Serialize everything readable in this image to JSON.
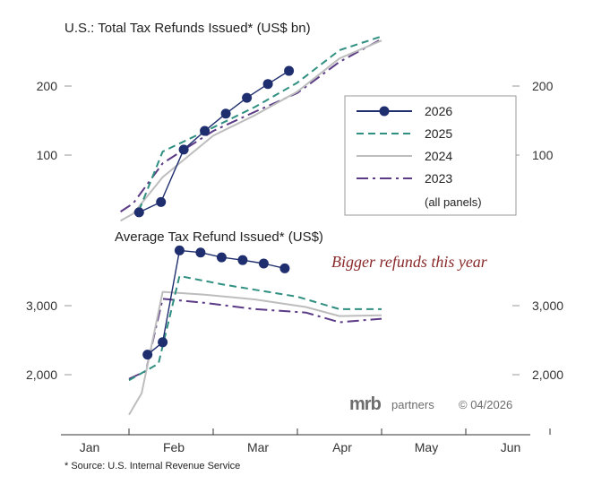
{
  "chart_data": [
    {
      "type": "line",
      "title": "U.S.: Total Tax Refunds Issued* (US$ bn)",
      "x_axis": {
        "ticks": [
          "Jan",
          "Feb",
          "Mar",
          "Apr",
          "May",
          "Jun"
        ]
      },
      "y_axis": {
        "ticks": [
          100,
          200
        ],
        "tick_labels": [
          "100",
          "200"
        ]
      },
      "series": [
        {
          "name": "2023",
          "color": "#5b3a86",
          "style": "dash-long",
          "x": [
            1.4,
            1.55,
            1.9,
            2.5,
            3.0,
            3.5,
            4.0,
            4.5
          ],
          "y": [
            18,
            30,
            88,
            135,
            163,
            190,
            235,
            268
          ]
        },
        {
          "name": "2024",
          "color": "#bdbdbd",
          "style": "solid",
          "x": [
            1.4,
            1.55,
            1.9,
            2.5,
            3.0,
            3.5,
            4.0,
            4.5
          ],
          "y": [
            5,
            15,
            68,
            128,
            158,
            192,
            240,
            266
          ]
        },
        {
          "name": "2025",
          "color": "#2f8f80",
          "style": "dash",
          "x": [
            1.62,
            1.9,
            2.5,
            3.0,
            3.5,
            4.0,
            4.5
          ],
          "y": [
            20,
            105,
            140,
            170,
            205,
            252,
            272
          ]
        },
        {
          "name": "2026",
          "color": "#1f2e6e",
          "style": "marker",
          "x": [
            1.62,
            1.88,
            2.15,
            2.4,
            2.65,
            2.9,
            3.15,
            3.4
          ],
          "y": [
            17,
            32,
            108,
            135,
            160,
            183,
            203,
            222
          ]
        }
      ]
    },
    {
      "type": "line",
      "title": "Average Tax Refund Issued* (US$)",
      "x_axis": {
        "ticks": [
          "Jan",
          "Feb",
          "Mar",
          "Apr",
          "May",
          "Jun"
        ]
      },
      "y_axis": {
        "ticks": [
          2000,
          3000
        ],
        "tick_labels": [
          "2,000",
          "3,000"
        ]
      },
      "annotation": "Bigger refunds this year",
      "series": [
        {
          "name": "2023",
          "color": "#5b3a86",
          "style": "dash-long",
          "x": [
            1.5,
            1.7,
            1.9,
            2.4,
            3.0,
            3.6,
            4.0,
            4.5
          ],
          "y": [
            1940,
            2050,
            3100,
            3040,
            2950,
            2900,
            2760,
            2810
          ]
        },
        {
          "name": "2024",
          "color": "#bdbdbd",
          "style": "solid",
          "x": [
            1.5,
            1.65,
            1.9,
            2.4,
            3.0,
            3.6,
            4.0,
            4.5
          ],
          "y": [
            1420,
            1730,
            3200,
            3160,
            3090,
            2980,
            2850,
            2860
          ]
        },
        {
          "name": "2025",
          "color": "#2f8f80",
          "style": "dash",
          "x": [
            1.5,
            1.85,
            2.1,
            2.6,
            3.0,
            3.5,
            4.0,
            4.5
          ],
          "y": [
            1920,
            2160,
            3430,
            3310,
            3230,
            3130,
            2950,
            2950
          ]
        },
        {
          "name": "2026",
          "color": "#1f2e6e",
          "style": "marker",
          "x": [
            1.72,
            1.9,
            2.1,
            2.35,
            2.6,
            2.85,
            3.1,
            3.35
          ],
          "y": [
            2290,
            2470,
            3800,
            3770,
            3700,
            3660,
            3610,
            3540
          ]
        }
      ]
    }
  ],
  "legend": {
    "items": [
      "2026",
      "2025",
      "2024",
      "2023"
    ],
    "note": "(all panels)"
  },
  "brand": {
    "name": "mrb",
    "suffix": "partners",
    "date": "© 04/2026"
  },
  "source": "* Source: U.S. Internal Revenue Service"
}
